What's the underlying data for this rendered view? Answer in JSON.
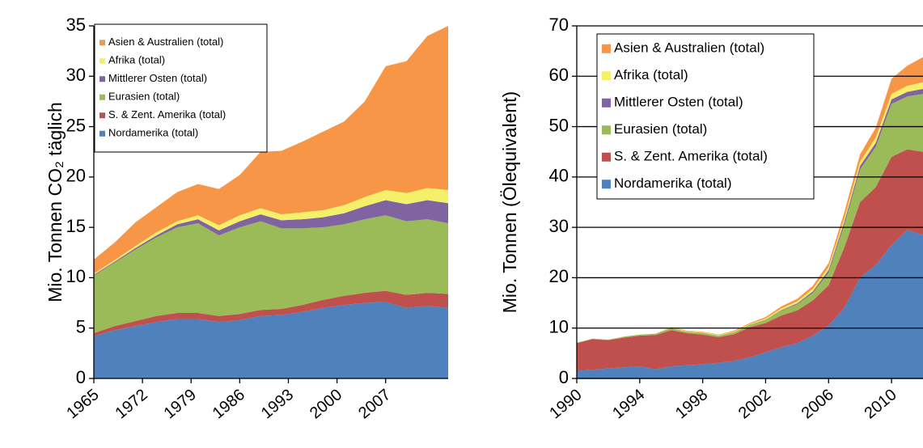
{
  "chart_data": [
    {
      "type": "area",
      "ylabel": "Mio. Tonnen CO₂ täglich",
      "x": [
        1965,
        1968,
        1971,
        1974,
        1977,
        1980,
        1983,
        1986,
        1989,
        1992,
        1995,
        1998,
        2001,
        2004,
        2007,
        2010,
        2013,
        2016
      ],
      "xlim": [
        1965,
        2016
      ],
      "xticks": [
        1965,
        1972,
        1979,
        1986,
        1993,
        2000,
        2007
      ],
      "ylim": [
        0,
        35
      ],
      "yticks": [
        0,
        5,
        10,
        15,
        20,
        25,
        30,
        35
      ],
      "grid": false,
      "series": [
        {
          "name": "Nordamerika (total)",
          "color": "#4f81bd",
          "values": [
            4.2,
            4.8,
            5.2,
            5.6,
            5.9,
            5.9,
            5.6,
            5.8,
            6.2,
            6.3,
            6.6,
            7.0,
            7.3,
            7.5,
            7.6,
            7.0,
            7.2,
            7.0
          ]
        },
        {
          "name": "S. & Zent. Amerika (total)",
          "color": "#c0504d",
          "values": [
            0.3,
            0.4,
            0.5,
            0.6,
            0.6,
            0.6,
            0.6,
            0.6,
            0.6,
            0.6,
            0.7,
            0.8,
            0.9,
            1.0,
            1.1,
            1.3,
            1.3,
            1.4
          ]
        },
        {
          "name": "Eurasien (total)",
          "color": "#9bbb59",
          "values": [
            5.7,
            6.3,
            7.1,
            7.8,
            8.5,
            8.9,
            8.0,
            8.6,
            8.8,
            8.0,
            7.6,
            7.2,
            7.1,
            7.3,
            7.5,
            7.3,
            7.3,
            7.0
          ]
        },
        {
          "name": "Mittlerer Osten (total)",
          "color": "#8064a2",
          "values": [
            0.1,
            0.1,
            0.15,
            0.2,
            0.3,
            0.4,
            0.5,
            0.6,
            0.7,
            0.8,
            0.9,
            1.0,
            1.1,
            1.3,
            1.5,
            1.7,
            1.9,
            2.0
          ]
        },
        {
          "name": "Afrika (total)",
          "color": "#f5f06a",
          "values": [
            0.1,
            0.15,
            0.2,
            0.3,
            0.3,
            0.4,
            0.5,
            0.6,
            0.6,
            0.6,
            0.7,
            0.7,
            0.8,
            0.9,
            1.0,
            1.1,
            1.2,
            1.3
          ]
        },
        {
          "name": "Asien & Australien (total)",
          "color": "#f79646",
          "values": [
            1.4,
            1.75,
            2.35,
            2.5,
            2.9,
            3.1,
            3.6,
            4.0,
            5.6,
            6.3,
            7.0,
            7.8,
            8.3,
            9.5,
            12.3,
            13.1,
            15.1,
            16.3
          ]
        }
      ]
    },
    {
      "type": "area",
      "ylabel": "Mio. Tonnen (Ölequivalent)",
      "x": [
        1990,
        1991,
        1992,
        1993,
        1994,
        1995,
        1996,
        1997,
        1998,
        1999,
        2000,
        2001,
        2002,
        2003,
        2004,
        2005,
        2006,
        2007,
        2008,
        2009,
        2010,
        2011,
        2012
      ],
      "xlim": [
        1990,
        2012
      ],
      "xticks": [
        1990,
        1994,
        1998,
        2002,
        2006,
        2010
      ],
      "ylim": [
        0,
        70
      ],
      "yticks": [
        0,
        10,
        20,
        30,
        40,
        50,
        60,
        70
      ],
      "grid": true,
      "series": [
        {
          "name": "Nordamerika (total)",
          "color": "#4f81bd",
          "values": [
            1.5,
            1.7,
            2,
            2.2,
            2.4,
            1.8,
            2.4,
            2.6,
            2.8,
            3.1,
            3.5,
            4.2,
            5.2,
            6.2,
            7,
            8.5,
            10.5,
            14,
            20,
            22.5,
            26.5,
            29.5,
            28.5
          ]
        },
        {
          "name": "S. & Zent. Amerika (total)",
          "color": "#c0504d",
          "values": [
            5.5,
            6.1,
            5.6,
            5.9,
            6.1,
            6.8,
            7.2,
            6.4,
            5.9,
            5.1,
            5.3,
            6.0,
            5.8,
            6.3,
            6.5,
            7.0,
            8.0,
            12.0,
            15.0,
            15.5,
            17.5,
            16.0,
            16.5
          ]
        },
        {
          "name": "Eurasien (total)",
          "color": "#9bbb59",
          "values": [
            0.1,
            0.1,
            0.1,
            0.2,
            0.2,
            0.3,
            0.4,
            0.3,
            0.4,
            0.3,
            0.4,
            0.5,
            0.7,
            1.0,
            1.2,
            1.5,
            2.5,
            4.5,
            6.5,
            8,
            10.5,
            10.5,
            11.5
          ]
        },
        {
          "name": "Mittlerer Osten (total)",
          "color": "#8064a2",
          "values": [
            0,
            0,
            0,
            0,
            0,
            0,
            0,
            0,
            0,
            0,
            0,
            0,
            0,
            0.1,
            0.2,
            0.3,
            0.5,
            0.6,
            0.7,
            0.8,
            0.9,
            0.9,
            1.0
          ]
        },
        {
          "name": "Afrika (total)",
          "color": "#f5f06a",
          "values": [
            0,
            0,
            0,
            0,
            0,
            0,
            0.1,
            0.1,
            0.1,
            0.1,
            0.1,
            0.1,
            0.2,
            0.3,
            0.4,
            0.5,
            0.6,
            0.7,
            0.8,
            1.0,
            1.1,
            1.2,
            1.3
          ]
        },
        {
          "name": "Asien & Australien (total)",
          "color": "#f79646",
          "values": [
            0,
            0,
            0,
            0,
            0,
            0,
            0.1,
            0.1,
            0.1,
            0.1,
            0.2,
            0.2,
            0.3,
            0.4,
            0.5,
            0.6,
            0.8,
            1.2,
            1.5,
            2.0,
            3.0,
            4.0,
            5.0
          ]
        }
      ]
    }
  ]
}
